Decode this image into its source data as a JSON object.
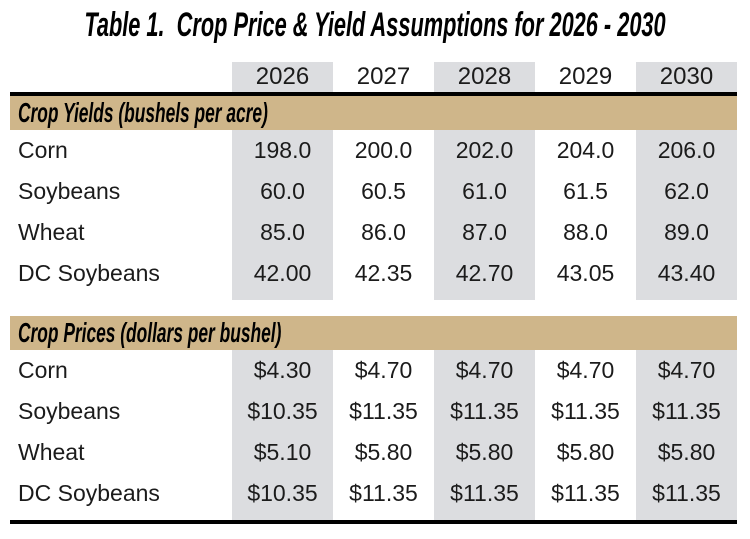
{
  "title": "Table 1.  Crop Price & Yield Assumptions for 2026 - 2030",
  "colors": {
    "tan": "#cfb68a",
    "shade": "#dcdde0",
    "rule": "#000000",
    "text": "#1b1b1b"
  },
  "columns": {
    "years": [
      "2026",
      "2027",
      "2028",
      "2029",
      "2030"
    ]
  },
  "sections": [
    {
      "header": "Crop Yields (bushels per acre)",
      "rows": [
        {
          "label": "Corn",
          "values": [
            "198.0",
            "200.0",
            "202.0",
            "204.0",
            "206.0"
          ]
        },
        {
          "label": "Soybeans",
          "values": [
            "60.0",
            "60.5",
            "61.0",
            "61.5",
            "62.0"
          ]
        },
        {
          "label": "Wheat",
          "values": [
            "85.0",
            "86.0",
            "87.0",
            "88.0",
            "89.0"
          ]
        },
        {
          "label": "DC Soybeans",
          "values": [
            "42.00",
            "42.35",
            "42.70",
            "43.05",
            "43.40"
          ]
        }
      ]
    },
    {
      "header": "Crop Prices (dollars per bushel)",
      "rows": [
        {
          "label": "Corn",
          "values": [
            "$4.30",
            "$4.70",
            "$4.70",
            "$4.70",
            "$4.70"
          ]
        },
        {
          "label": "Soybeans",
          "values": [
            "$10.35",
            "$11.35",
            "$11.35",
            "$11.35",
            "$11.35"
          ]
        },
        {
          "label": "Wheat",
          "values": [
            "$5.10",
            "$5.80",
            "$5.80",
            "$5.80",
            "$5.80"
          ]
        },
        {
          "label": "DC Soybeans",
          "values": [
            "$10.35",
            "$11.35",
            "$11.35",
            "$11.35",
            "$11.35"
          ]
        }
      ]
    }
  ]
}
